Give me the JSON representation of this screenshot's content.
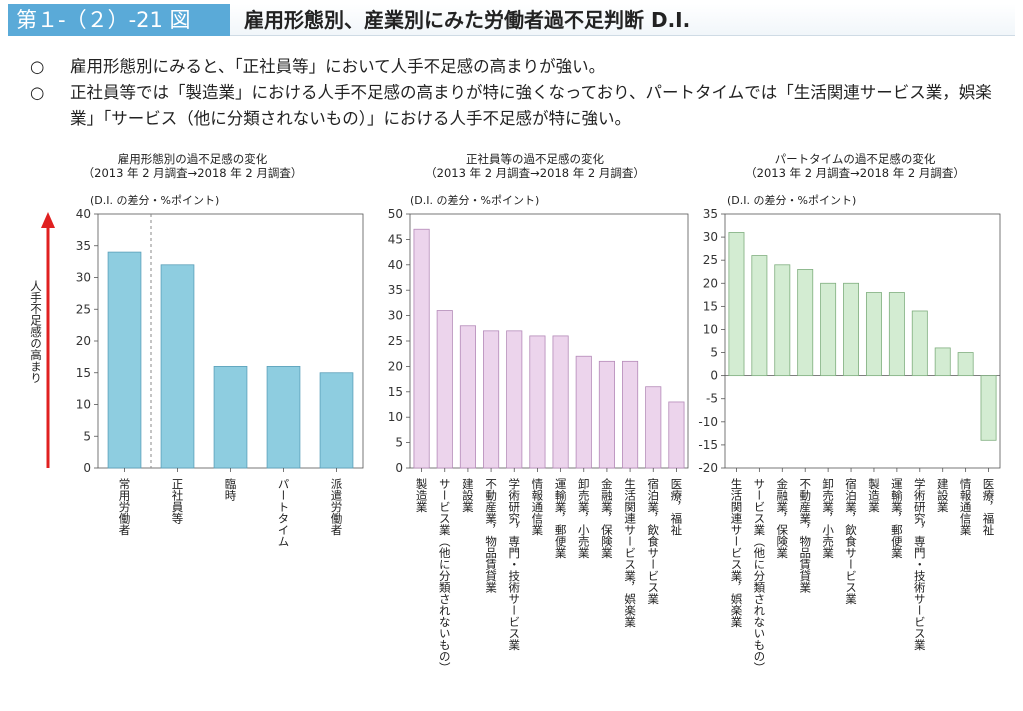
{
  "header": {
    "figure_label": "第１-（２）-21 図",
    "title": "雇用形態別、産業別にみた労働者過不足判断 D.I."
  },
  "bullets": [
    "雇用形態別にみると、「正社員等」において人手不足感の高まりが強い。",
    "正社員等では「製造業」における人手不足感の高まりが特に強くなっており、パートタイムでは「生活関連サービス業，娯楽業」「サービス（他に分類されないもの）」における人手不足感が特に強い。"
  ],
  "bullet_mark": "○",
  "colors": {
    "blue": "#8ecde0",
    "pink": "#ecd4ec",
    "green": "#d3ecd2",
    "arrow": "#e02020"
  },
  "chart_data": [
    {
      "type": "bar",
      "title_line1": "雇用形態別の過不足感の変化",
      "title_line2": "（2013 年 2 月調査→2018 年 2 月調査）",
      "unit": "(D.I. の差分・%ポイント)",
      "ylabel": "人手不足感の高まり",
      "ylim": [
        0,
        40
      ],
      "yticks": [
        0,
        5,
        10,
        15,
        20,
        25,
        30,
        35,
        40
      ],
      "categories": [
        "常用労働者",
        "正社員等",
        "臨時",
        "パートタイム",
        "派遣労働者"
      ],
      "values": [
        34,
        32,
        16,
        16,
        15
      ],
      "divider_after": 0
    },
    {
      "type": "bar",
      "title_line1": "正社員等の過不足感の変化",
      "title_line2": "（2013 年 2 月調査→2018 年 2 月調査）",
      "unit": "(D.I. の差分・%ポイント)",
      "ylim": [
        0,
        50
      ],
      "yticks": [
        0,
        5,
        10,
        15,
        20,
        25,
        30,
        35,
        40,
        45,
        50
      ],
      "categories": [
        "製造業",
        "サービス業（他に分類されないもの）",
        "建設業",
        "不動産業，物品賃貸業",
        "学術研究，専門・技術サービス業",
        "情報通信業",
        "運輸業，郵便業",
        "卸売業，小売業",
        "金融業，保険業",
        "生活関連サービス業，娯楽業",
        "宿泊業，飲食サービス業",
        "医療，福祉"
      ],
      "values": [
        47,
        31,
        28,
        27,
        27,
        26,
        26,
        22,
        21,
        21,
        16,
        13
      ]
    },
    {
      "type": "bar",
      "title_line1": "パートタイムの過不足感の変化",
      "title_line2": "（2013 年 2 月調査→2018 年 2 月調査）",
      "unit": "(D.I. の差分・%ポイント)",
      "ylim": [
        -20,
        35
      ],
      "yticks": [
        -20,
        -15,
        -10,
        -5,
        0,
        5,
        10,
        15,
        20,
        25,
        30,
        35
      ],
      "categories": [
        "生活関連サービス業，娯楽業",
        "サービス業（他に分類されないもの）",
        "金融業，保険業",
        "不動産業，物品賃貸業",
        "卸売業，小売業",
        "宿泊業，飲食サービス業",
        "製造業",
        "運輸業，郵便業",
        "学術研究，専門・技術サービス業",
        "建設業",
        "情報通信業",
        "医療，福祉"
      ],
      "values": [
        31,
        26,
        24,
        23,
        20,
        20,
        18,
        18,
        14,
        6,
        5,
        -14
      ]
    }
  ]
}
